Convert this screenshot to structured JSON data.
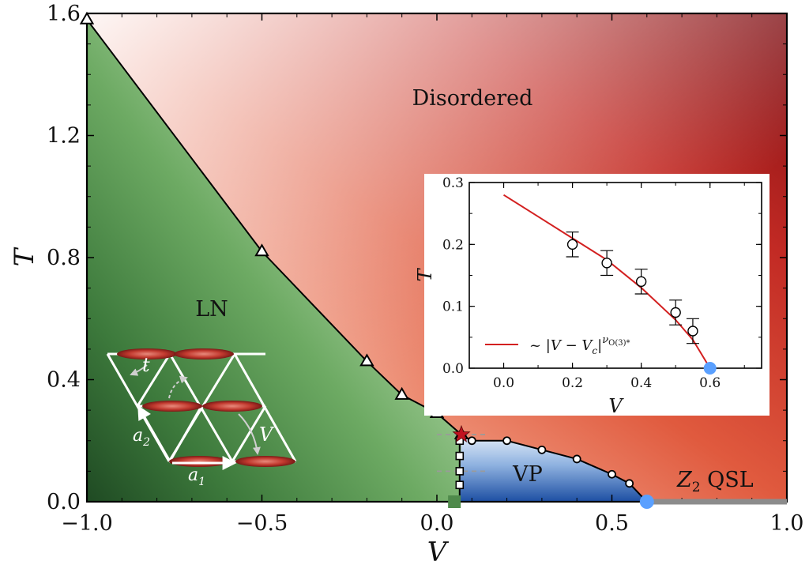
{
  "chart_data": [
    {
      "type": "line",
      "panel": "main",
      "title": "",
      "xlabel": "V",
      "ylabel": "T",
      "xlim": [
        -1.0,
        1.0
      ],
      "ylim": [
        0.0,
        1.6
      ],
      "xticks": [
        "−1.0",
        "−0.5",
        "0.0",
        "0.5",
        "1.0"
      ],
      "xtick_values": [
        -1.0,
        -0.5,
        0.0,
        0.5,
        1.0
      ],
      "yticks": [
        "0.0",
        "0.4",
        "0.8",
        "1.2",
        "1.6"
      ],
      "ytick_values": [
        0.0,
        0.4,
        0.8,
        1.2,
        1.6
      ],
      "grid": false,
      "regions": [
        {
          "label": "Disordered",
          "color": "#a8161b"
        },
        {
          "label": "LN",
          "color": "#2f6a34"
        },
        {
          "label": "VP",
          "color": "#2a58a8"
        },
        {
          "label_prefix": "Z",
          "label_sub": "2",
          "label_suffix": " QSL",
          "color": "#8c8c8c"
        }
      ],
      "series": [
        {
          "marker": "triangle",
          "x": [
            -1.0,
            -0.5,
            -0.2,
            -0.1,
            0.0,
            0.07
          ],
          "y": [
            1.58,
            0.82,
            0.46,
            0.35,
            0.29,
            0.22
          ]
        },
        {
          "marker": "diamond",
          "x": [
            0.07,
            0.1,
            0.2,
            0.3,
            0.4,
            0.5,
            0.55,
            0.6
          ],
          "y": [
            0.22,
            0.2,
            0.2,
            0.17,
            0.14,
            0.09,
            0.06,
            0.0
          ]
        },
        {
          "marker": "square",
          "x": [
            0.065,
            0.065,
            0.065,
            0.065,
            0.065
          ],
          "y": [
            0.2,
            0.15,
            0.1,
            0.055,
            0.0
          ]
        }
      ],
      "special_points": {
        "star": {
          "x": 0.07,
          "y": 0.22,
          "color": "#c1121f"
        },
        "green_square": {
          "x": 0.05,
          "y": 0.0,
          "color": "#4f8a4b"
        },
        "qcp": {
          "x": 0.6,
          "y": 0.0,
          "color": "#5aa0ff"
        }
      },
      "qsl_segment": {
        "x": [
          0.6,
          1.0
        ],
        "y": 0.0,
        "color": "#8c8c8c"
      },
      "lattice_labels": {
        "t": "t",
        "v": "V",
        "a1": "a",
        "a1_sub": "1",
        "a2": "a",
        "a2_sub": "2"
      }
    },
    {
      "type": "scatter",
      "panel": "inset",
      "title": "",
      "xlabel": "V",
      "ylabel": "T",
      "xlim": [
        -0.1,
        0.75
      ],
      "ylim": [
        0.0,
        0.3
      ],
      "xticks": [
        "0.0",
        "0.2",
        "0.4",
        "0.6"
      ],
      "xtick_values": [
        0.0,
        0.2,
        0.4,
        0.6
      ],
      "yticks": [
        "0.0",
        "0.1",
        "0.2",
        "0.3"
      ],
      "ytick_values": [
        0.0,
        0.1,
        0.2,
        0.3
      ],
      "grid": false,
      "legend": {
        "placement": "lower-left",
        "prefix": "~ |V − V",
        "sub": "c",
        "mid": "|",
        "sup": "ν",
        "supsub": "O(3)*"
      },
      "series": [
        {
          "marker": "circle",
          "x": [
            0.2,
            0.3,
            0.4,
            0.5,
            0.55
          ],
          "y": [
            0.2,
            0.17,
            0.14,
            0.09,
            0.06
          ],
          "yerr": [
            0.02,
            0.02,
            0.02,
            0.02,
            0.02
          ]
        },
        {
          "marker": "none",
          "color": "#d32020",
          "x": [
            0.0,
            0.1,
            0.2,
            0.3,
            0.4,
            0.5,
            0.55,
            0.6
          ],
          "y": [
            0.28,
            0.245,
            0.21,
            0.175,
            0.13,
            0.078,
            0.046,
            0.0
          ]
        }
      ],
      "qcp": {
        "x": 0.6,
        "y": 0.0,
        "color": "#5aa0ff"
      }
    }
  ]
}
